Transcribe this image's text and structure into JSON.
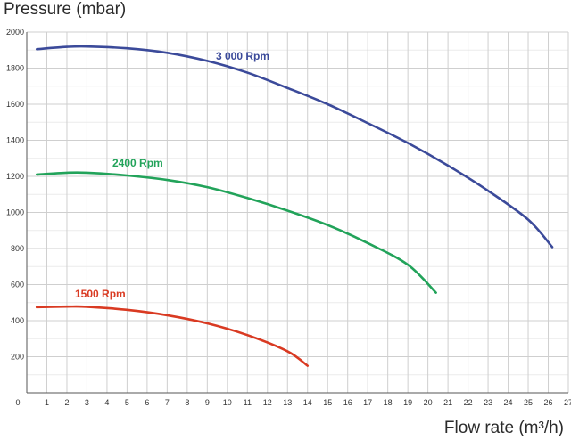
{
  "chart_data": {
    "type": "line",
    "ylabel": "Pressure (mbar)",
    "xlabel": "Flow rate (m³/h)",
    "xlim": [
      0,
      27
    ],
    "ylim": [
      0,
      2000
    ],
    "x_ticks": [
      0,
      1,
      2,
      3,
      4,
      5,
      6,
      7,
      8,
      9,
      10,
      11,
      12,
      13,
      14,
      15,
      16,
      17,
      18,
      19,
      20,
      21,
      22,
      23,
      24,
      25,
      26,
      27
    ],
    "y_ticks": [
      200,
      400,
      600,
      800,
      1000,
      1200,
      1400,
      1600,
      1800,
      2000
    ],
    "grid": true,
    "series": [
      {
        "name": "3 000 Rpm",
        "color": "#3b4a9a",
        "points": [
          [
            0.5,
            1905
          ],
          [
            2,
            1918
          ],
          [
            3,
            1920
          ],
          [
            5,
            1910
          ],
          [
            7,
            1885
          ],
          [
            9,
            1840
          ],
          [
            11,
            1775
          ],
          [
            13,
            1690
          ],
          [
            15,
            1600
          ],
          [
            17,
            1495
          ],
          [
            19,
            1385
          ],
          [
            21,
            1260
          ],
          [
            23,
            1120
          ],
          [
            25,
            960
          ],
          [
            26.2,
            808
          ]
        ]
      },
      {
        "name": "2400 Rpm",
        "color": "#22a35a",
        "points": [
          [
            0.5,
            1210
          ],
          [
            2,
            1220
          ],
          [
            3,
            1220
          ],
          [
            5,
            1205
          ],
          [
            7,
            1180
          ],
          [
            9,
            1140
          ],
          [
            11,
            1080
          ],
          [
            13,
            1010
          ],
          [
            15,
            930
          ],
          [
            17,
            830
          ],
          [
            19,
            710
          ],
          [
            20.4,
            555
          ]
        ]
      },
      {
        "name": "1500 Rpm",
        "color": "#d93a22",
        "points": [
          [
            0.5,
            475
          ],
          [
            2,
            478
          ],
          [
            3,
            477
          ],
          [
            5,
            460
          ],
          [
            7,
            430
          ],
          [
            9,
            385
          ],
          [
            11,
            320
          ],
          [
            13,
            230
          ],
          [
            14,
            150
          ]
        ]
      }
    ]
  }
}
